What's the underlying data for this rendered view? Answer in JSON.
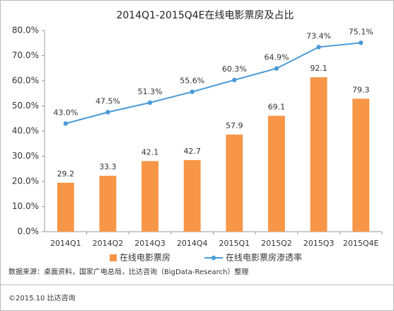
{
  "chart_data": {
    "type": "bar-line",
    "title": "2014Q1-2015Q4E在线电影票房及占比",
    "categories": [
      "2014Q1",
      "2014Q2",
      "2014Q3",
      "2014Q4",
      "2015Q1",
      "2015Q2",
      "2015Q3",
      "2015Q4E"
    ],
    "series": [
      {
        "name": "在线电影票房",
        "type": "bar",
        "axis": "y2",
        "color": "#f79646",
        "values": [
          29.2,
          33.3,
          42.1,
          42.7,
          57.9,
          69.1,
          92.1,
          79.3
        ]
      },
      {
        "name": "在线电影票房渗透率",
        "type": "line",
        "axis": "y",
        "color": "#4a9bd8",
        "values": [
          43.0,
          47.5,
          51.3,
          55.6,
          60.3,
          64.9,
          73.4,
          75.1
        ],
        "value_labels": [
          "43.0%",
          "47.5%",
          "51.3%",
          "55.6%",
          "60.3%",
          "64.9%",
          "73.4%",
          "75.1%"
        ]
      }
    ],
    "ylim": [
      0,
      80
    ],
    "yticks": [
      {
        "value": 0,
        "label": "0.0%"
      },
      {
        "value": 10,
        "label": "10.0%"
      },
      {
        "value": 20,
        "label": "20.0%"
      },
      {
        "value": 30,
        "label": "30.0%"
      },
      {
        "value": 40,
        "label": "40.0%"
      },
      {
        "value": 50,
        "label": "50.0%"
      },
      {
        "value": 60,
        "label": "60.0%"
      },
      {
        "value": 70,
        "label": "70.0%"
      },
      {
        "value": 80,
        "label": "80.0%"
      }
    ],
    "y2lim": [
      0,
      120
    ],
    "grid": false,
    "legend": "bottom",
    "source": "数据来源：桌面资料，国家广电总局，比达咨询（BigData-Research）整理",
    "copyright": "©2015.10  比达咨询"
  }
}
